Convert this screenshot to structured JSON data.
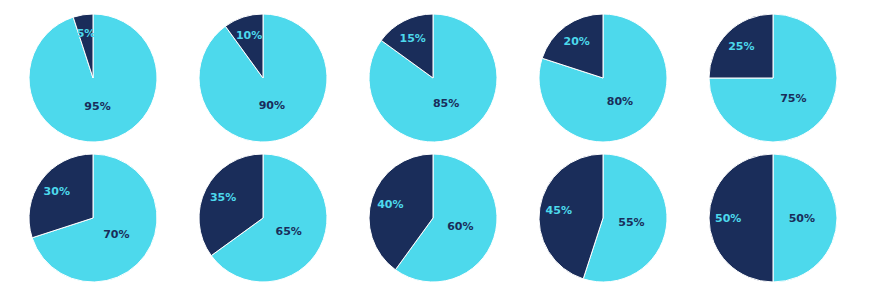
{
  "chart_data": [
    {
      "type": "pie",
      "values": [
        95,
        5
      ],
      "value_labels": [
        "95%",
        "5%"
      ],
      "colors": [
        "#4DD9EC",
        "#1A2D5A"
      ],
      "data_labels": true
    },
    {
      "type": "pie",
      "values": [
        90,
        10
      ],
      "value_labels": [
        "90%",
        "10%"
      ],
      "colors": [
        "#4DD9EC",
        "#1A2D5A"
      ],
      "data_labels": true
    },
    {
      "type": "pie",
      "values": [
        85,
        15
      ],
      "value_labels": [
        "85%",
        "15%"
      ],
      "colors": [
        "#4DD9EC",
        "#1A2D5A"
      ],
      "data_labels": true
    },
    {
      "type": "pie",
      "values": [
        80,
        20
      ],
      "value_labels": [
        "80%",
        "20%"
      ],
      "colors": [
        "#4DD9EC",
        "#1A2D5A"
      ],
      "data_labels": true
    },
    {
      "type": "pie",
      "values": [
        75,
        25
      ],
      "value_labels": [
        "75%",
        "25%"
      ],
      "colors": [
        "#4DD9EC",
        "#1A2D5A"
      ],
      "data_labels": true
    },
    {
      "type": "pie",
      "values": [
        70,
        30
      ],
      "value_labels": [
        "70%",
        "30%"
      ],
      "colors": [
        "#4DD9EC",
        "#1A2D5A"
      ],
      "data_labels": true
    },
    {
      "type": "pie",
      "values": [
        65,
        35
      ],
      "value_labels": [
        "65%",
        "35%"
      ],
      "colors": [
        "#4DD9EC",
        "#1A2D5A"
      ],
      "data_labels": true
    },
    {
      "type": "pie",
      "values": [
        60,
        40
      ],
      "value_labels": [
        "60%",
        "40%"
      ],
      "colors": [
        "#4DD9EC",
        "#1A2D5A"
      ],
      "data_labels": true
    },
    {
      "type": "pie",
      "values": [
        55,
        45
      ],
      "value_labels": [
        "55%",
        "45%"
      ],
      "colors": [
        "#4DD9EC",
        "#1A2D5A"
      ],
      "data_labels": true
    },
    {
      "type": "pie",
      "values": [
        50,
        50
      ],
      "value_labels": [
        "50%",
        "50%"
      ],
      "colors": [
        "#4DD9EC",
        "#1A2D5A"
      ],
      "data_labels": true
    }
  ]
}
